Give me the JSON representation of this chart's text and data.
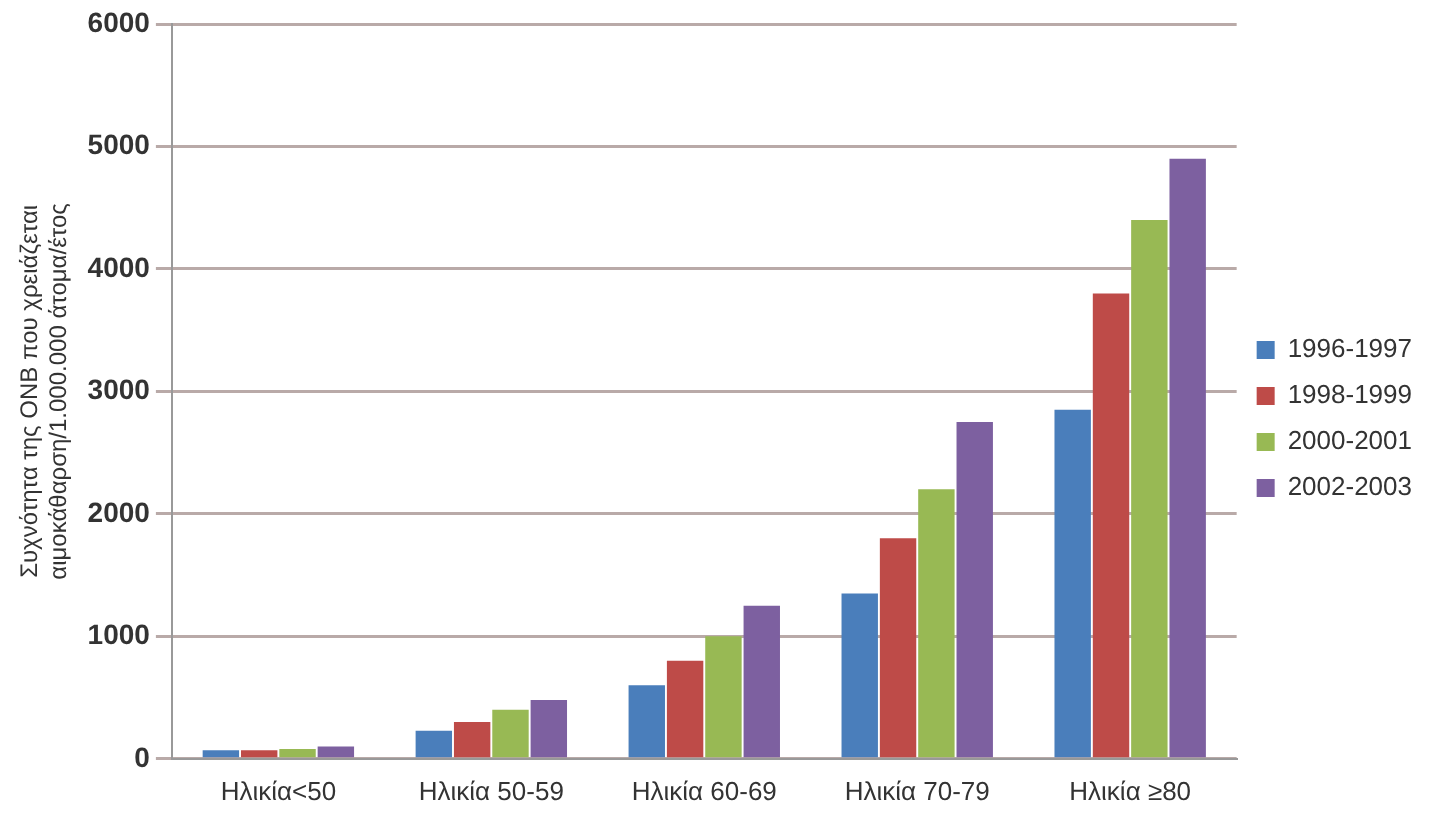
{
  "chart_data": {
    "type": "bar",
    "ylabel": "Συχνότητα της ΟΝΒ που χρειάζεται\nαιμοκάθαρση/1.000.000 άτομα/έτος",
    "categories": [
      "Ηλικία<50",
      "Ηλικία 50-59",
      "Ηλικία 60-69",
      "Ηλικία 70-79",
      "Ηλικία ≥80"
    ],
    "series": [
      {
        "name": "1996-1997",
        "color": "#4a7ebb",
        "values": [
          70,
          230,
          600,
          1350,
          2850
        ]
      },
      {
        "name": "1998-1999",
        "color": "#be4b48",
        "values": [
          70,
          300,
          800,
          1800,
          3800
        ]
      },
      {
        "name": "2000-2001",
        "color": "#98b954",
        "values": [
          80,
          400,
          1000,
          2200,
          4400
        ]
      },
      {
        "name": "2002-2003",
        "color": "#7d60a0",
        "values": [
          100,
          480,
          1250,
          2750,
          4900
        ]
      }
    ],
    "ylim": [
      0,
      6000
    ],
    "yticks": [
      0,
      1000,
      2000,
      3000,
      4000,
      5000,
      6000
    ],
    "grid": "y",
    "legend": "right"
  }
}
